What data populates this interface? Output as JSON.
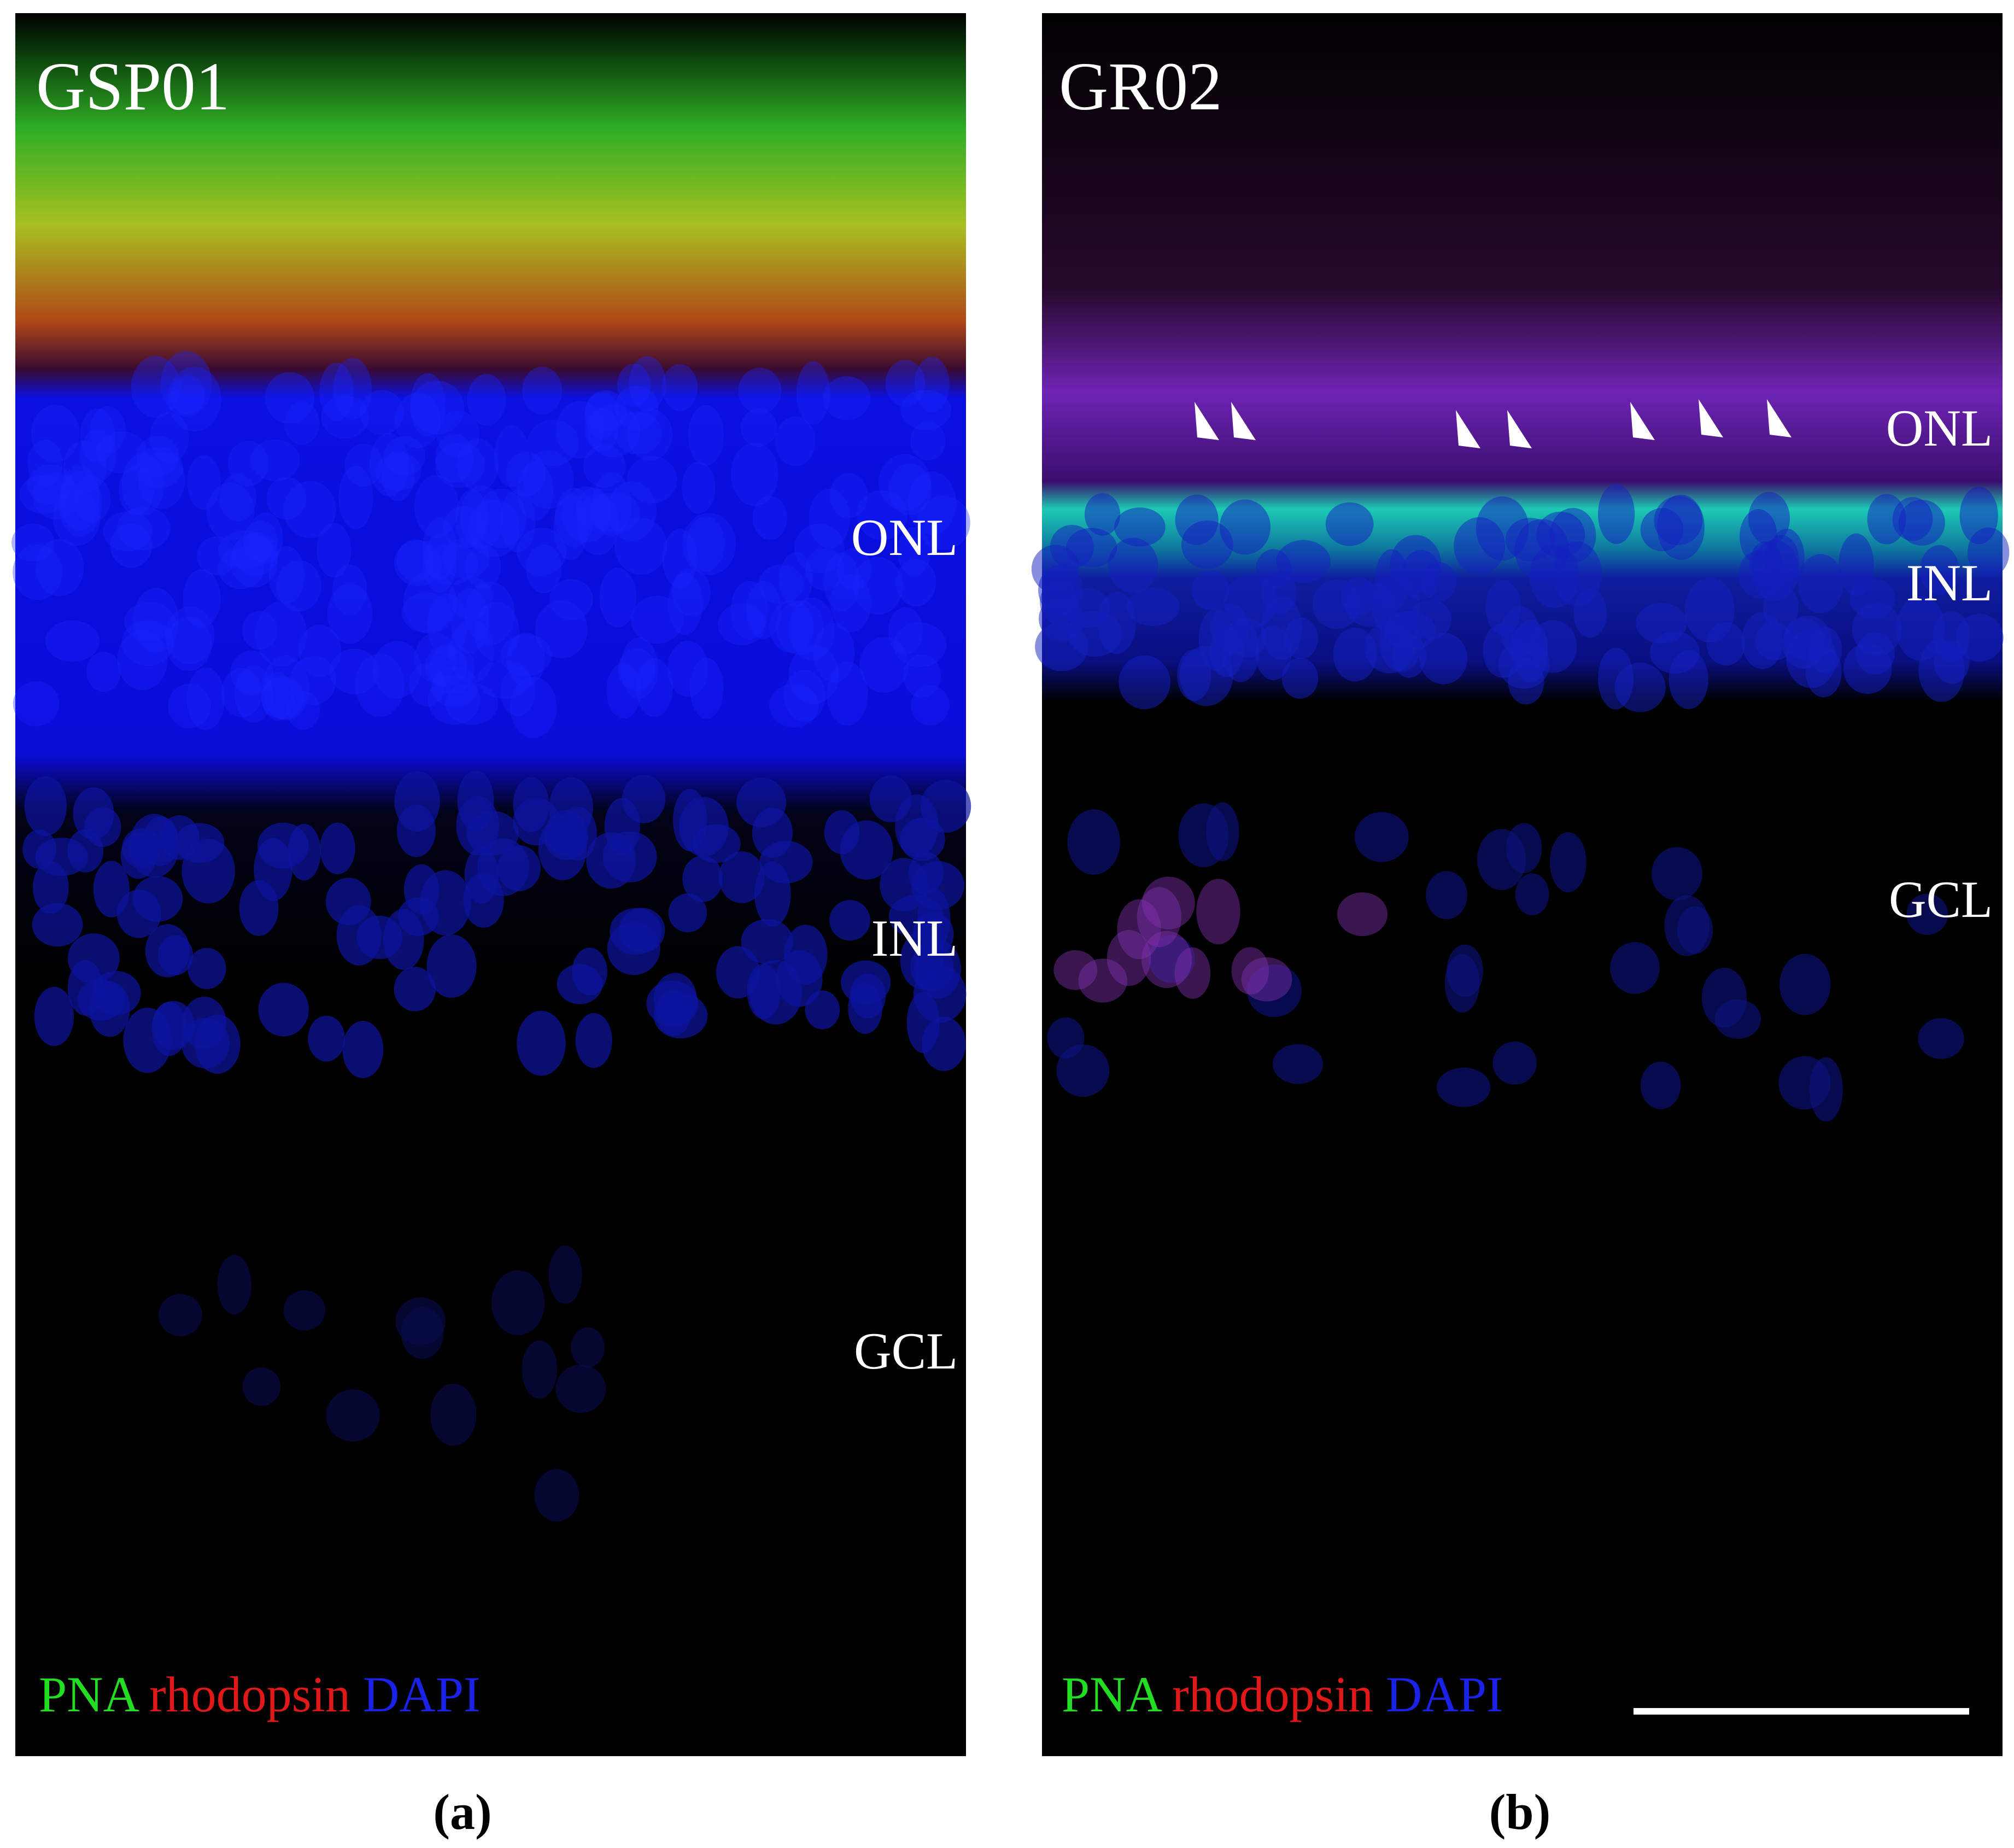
{
  "panels": [
    {
      "sample": "GSP01",
      "layers": [
        "ONL",
        "INL",
        "GCL"
      ],
      "legend": [
        "PNA",
        "rhodopsin",
        "DAPI"
      ],
      "caption": "(a)"
    },
    {
      "sample": "GR02",
      "layers": [
        "ONL",
        "INL",
        "GCL"
      ],
      "legend": [
        "PNA",
        "rhodopsin",
        "DAPI"
      ],
      "caption": "(b)"
    }
  ]
}
